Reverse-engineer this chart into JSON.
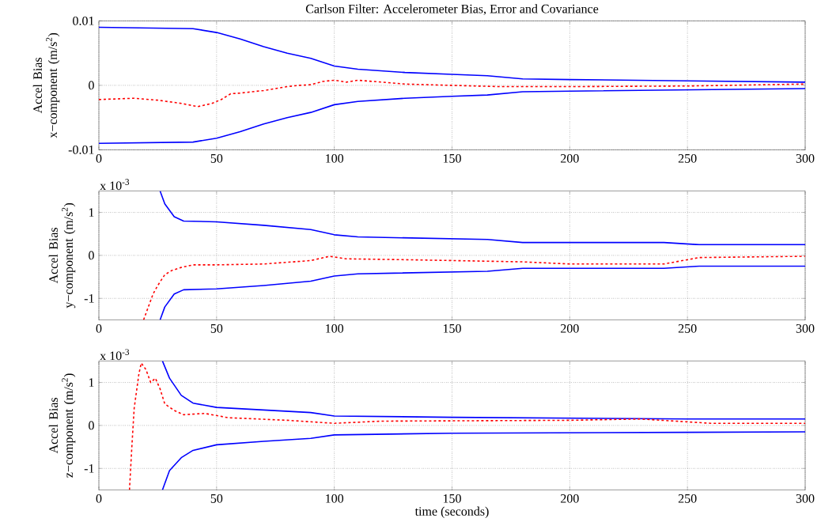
{
  "chart_data": [
    {
      "type": "line",
      "title": "Carlson Filter: Accelerometer Bias, Error and Covariance",
      "ylabel": "Accel Bias x−component (m/s$^{2}$)",
      "xlim": [
        0,
        300
      ],
      "ylim": [
        -0.01,
        0.01
      ],
      "xticks": [
        0,
        50,
        100,
        150,
        200,
        250,
        300
      ],
      "yticks": [
        -0.01,
        0,
        0.01
      ],
      "grid": true,
      "series": [
        {
          "color": "#0000ff",
          "line_style": "solid",
          "x": [
            0,
            40,
            50,
            60,
            70,
            80,
            90,
            100,
            110,
            130,
            150,
            165,
            180,
            200,
            250,
            300
          ],
          "values": [
            0.009,
            0.0088,
            0.0082,
            0.0072,
            0.006,
            0.005,
            0.0042,
            0.003,
            0.0025,
            0.002,
            0.0017,
            0.0015,
            0.001,
            0.0009,
            0.0007,
            0.0005
          ]
        },
        {
          "color": "#0000ff",
          "line_style": "solid",
          "x": [
            0,
            40,
            50,
            60,
            70,
            80,
            90,
            100,
            110,
            130,
            150,
            165,
            180,
            200,
            250,
            300
          ],
          "values": [
            -0.009,
            -0.0088,
            -0.0082,
            -0.0072,
            -0.006,
            -0.005,
            -0.0042,
            -0.003,
            -0.0025,
            -0.002,
            -0.0017,
            -0.0015,
            -0.001,
            -0.0009,
            -0.0007,
            -0.0005
          ]
        },
        {
          "color": "#ff0000",
          "line_style": "dashed",
          "x": [
            0,
            15,
            25,
            35,
            42,
            48,
            52,
            56,
            60,
            65,
            70,
            75,
            80,
            85,
            90,
            95,
            100,
            105,
            110,
            120,
            130,
            150,
            170,
            200,
            250,
            300
          ],
          "values": [
            -0.0022,
            -0.002,
            -0.0023,
            -0.0028,
            -0.0033,
            -0.0028,
            -0.0022,
            -0.0013,
            -0.0012,
            -0.001,
            -0.0008,
            -0.0005,
            -0.0002,
            0,
            0.0001,
            0.0006,
            0.0008,
            0.0005,
            0.0008,
            0.0005,
            0.0002,
            0,
            -0.0002,
            -0.0002,
            -0.0001,
            0.0002
          ]
        }
      ]
    },
    {
      "type": "line",
      "ylabel": "Accel Bias y−component (m/s$^{2}$)",
      "annotations": [
        "x 10$^{-3}$"
      ],
      "xlim": [
        0,
        300
      ],
      "ylim": [
        -1.5,
        1.5
      ],
      "xticks": [
        0,
        50,
        100,
        150,
        200,
        250,
        300
      ],
      "yticks": [
        -1,
        0,
        1
      ],
      "grid": true,
      "series": [
        {
          "color": "#0000ff",
          "line_style": "solid",
          "x": [
            26,
            28,
            32,
            36,
            50,
            70,
            90,
            100,
            110,
            165,
            180,
            240,
            255,
            300
          ],
          "values": [
            1.5,
            1.2,
            0.9,
            0.8,
            0.78,
            0.7,
            0.6,
            0.48,
            0.43,
            0.37,
            0.3,
            0.3,
            0.25,
            0.25
          ]
        },
        {
          "color": "#0000ff",
          "line_style": "solid",
          "x": [
            26,
            28,
            32,
            36,
            50,
            70,
            90,
            100,
            110,
            165,
            180,
            240,
            255,
            300
          ],
          "values": [
            -1.5,
            -1.2,
            -0.9,
            -0.8,
            -0.78,
            -0.7,
            -0.6,
            -0.48,
            -0.43,
            -0.37,
            -0.3,
            -0.3,
            -0.25,
            -0.25
          ]
        },
        {
          "color": "#ff0000",
          "line_style": "dashed",
          "x": [
            19,
            21,
            23,
            25,
            28,
            31,
            35,
            40,
            50,
            70,
            90,
            98,
            105,
            130,
            150,
            180,
            200,
            240,
            255,
            300
          ],
          "values": [
            -1.5,
            -1.2,
            -0.9,
            -0.7,
            -0.45,
            -0.35,
            -0.28,
            -0.22,
            -0.22,
            -0.2,
            -0.12,
            -0.02,
            -0.08,
            -0.1,
            -0.12,
            -0.15,
            -0.2,
            -0.2,
            -0.05,
            -0.02
          ]
        }
      ]
    },
    {
      "type": "line",
      "xlabel": "time (seconds)",
      "ylabel": "Accel Bias z−component (m/s$^{2}$)",
      "annotations": [
        "x 10$^{-3}$"
      ],
      "xlim": [
        0,
        300
      ],
      "ylim": [
        -1.5,
        1.5
      ],
      "xticks": [
        0,
        50,
        100,
        150,
        200,
        250,
        300
      ],
      "yticks": [
        -1,
        0,
        1
      ],
      "grid": true,
      "series": [
        {
          "color": "#0000ff",
          "line_style": "solid",
          "x": [
            27,
            30,
            35,
            40,
            50,
            70,
            90,
            100,
            150,
            250,
            300
          ],
          "values": [
            1.5,
            1.1,
            0.7,
            0.52,
            0.42,
            0.36,
            0.3,
            0.22,
            0.19,
            0.15,
            0.15
          ]
        },
        {
          "color": "#0000ff",
          "line_style": "solid",
          "x": [
            27,
            30,
            35,
            40,
            50,
            70,
            90,
            100,
            150,
            250,
            300
          ],
          "values": [
            -1.5,
            -1.05,
            -0.75,
            -0.58,
            -0.45,
            -0.37,
            -0.3,
            -0.22,
            -0.18,
            -0.16,
            -0.15
          ]
        },
        {
          "color": "#ff0000",
          "line_style": "dashed",
          "x": [
            13,
            14,
            15,
            16,
            17,
            18,
            20,
            22,
            24,
            26,
            28,
            32,
            36,
            45,
            55,
            80,
            100,
            120,
            200,
            230,
            260,
            300
          ],
          "values": [
            -1.5,
            -0.5,
            0.4,
            0.8,
            1.2,
            1.45,
            1.3,
            1.0,
            1.1,
            0.85,
            0.5,
            0.35,
            0.25,
            0.28,
            0.18,
            0.12,
            0.05,
            0.1,
            0.12,
            0.15,
            0.05,
            0.05
          ]
        }
      ]
    }
  ]
}
